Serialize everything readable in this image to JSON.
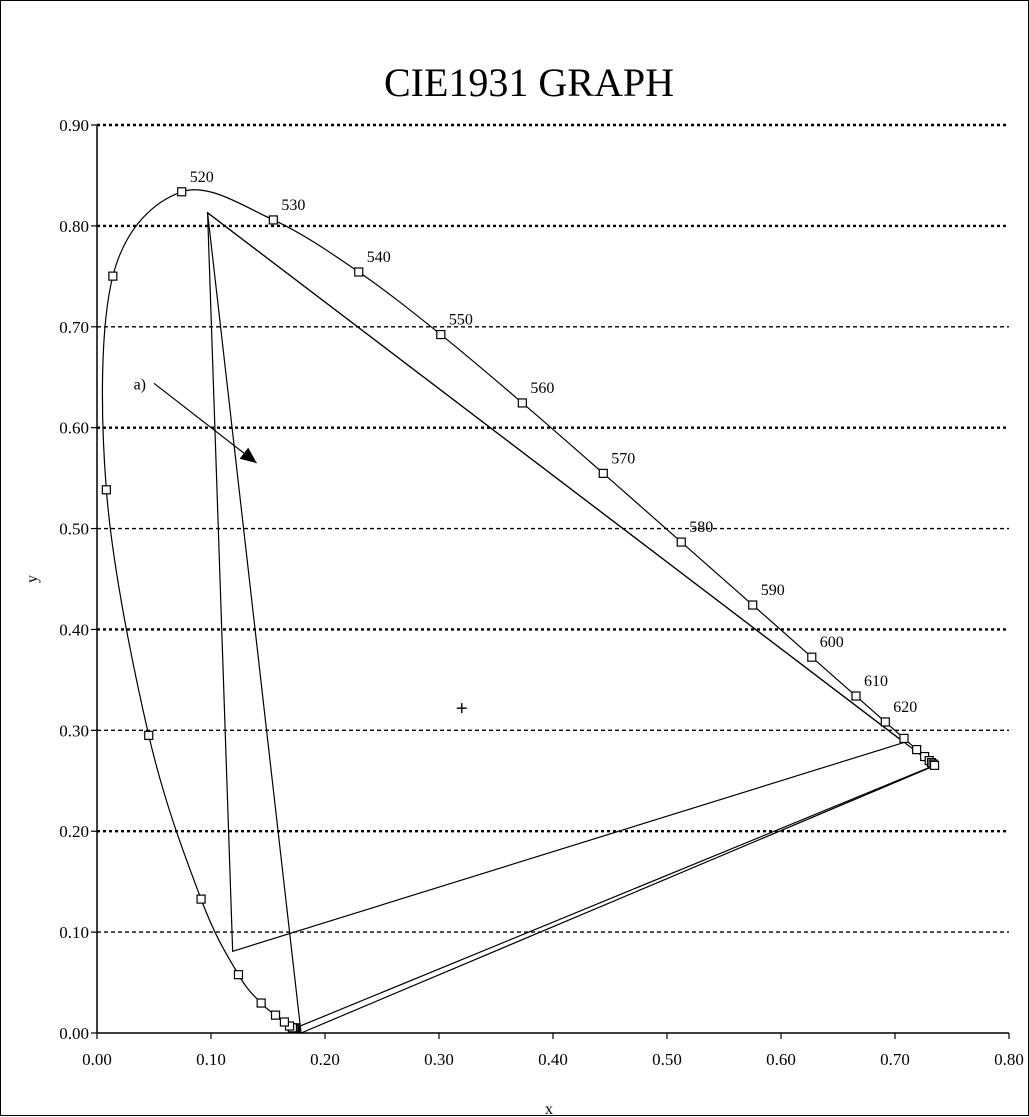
{
  "chart_data": {
    "type": "scatter",
    "title": "CIE1931 GRAPH",
    "xlabel": "x",
    "ylabel": "y",
    "xlim": [
      0.0,
      0.8
    ],
    "ylim": [
      0.0,
      0.9
    ],
    "x_ticks": [
      "0.00",
      "0.10",
      "0.20",
      "0.30",
      "0.40",
      "0.50",
      "0.60",
      "0.70",
      "0.80"
    ],
    "y_ticks": [
      "0.00",
      "0.10",
      "0.20",
      "0.30",
      "0.40",
      "0.50",
      "0.60",
      "0.70",
      "0.80",
      "0.90"
    ],
    "grid": "horizontal-dotted",
    "spectral_locus": [
      {
        "x": 0.1741,
        "y": 0.005
      },
      {
        "x": 0.1738,
        "y": 0.0049
      },
      {
        "x": 0.1736,
        "y": 0.005
      },
      {
        "x": 0.1733,
        "y": 0.0048
      },
      {
        "x": 0.1726,
        "y": 0.0048
      },
      {
        "x": 0.1714,
        "y": 0.0051
      },
      {
        "x": 0.1689,
        "y": 0.0069
      },
      {
        "x": 0.1644,
        "y": 0.0109
      },
      {
        "x": 0.1566,
        "y": 0.0177
      },
      {
        "x": 0.144,
        "y": 0.0297
      },
      {
        "x": 0.1241,
        "y": 0.0578
      },
      {
        "x": 0.0913,
        "y": 0.1327
      },
      {
        "x": 0.0454,
        "y": 0.295
      },
      {
        "x": 0.0082,
        "y": 0.5384
      },
      {
        "x": 0.0139,
        "y": 0.7502
      },
      {
        "x": 0.0743,
        "y": 0.8338
      },
      {
        "x": 0.1547,
        "y": 0.8059
      },
      {
        "x": 0.2296,
        "y": 0.7543
      },
      {
        "x": 0.3016,
        "y": 0.6923
      },
      {
        "x": 0.3731,
        "y": 0.6245
      },
      {
        "x": 0.4441,
        "y": 0.5547
      },
      {
        "x": 0.5125,
        "y": 0.4866
      },
      {
        "x": 0.5752,
        "y": 0.4242
      },
      {
        "x": 0.627,
        "y": 0.3725
      },
      {
        "x": 0.6658,
        "y": 0.334
      },
      {
        "x": 0.6915,
        "y": 0.3083
      },
      {
        "x": 0.7079,
        "y": 0.292
      },
      {
        "x": 0.719,
        "y": 0.2809
      },
      {
        "x": 0.726,
        "y": 0.274
      },
      {
        "x": 0.73,
        "y": 0.27
      },
      {
        "x": 0.732,
        "y": 0.268
      },
      {
        "x": 0.7334,
        "y": 0.2666
      },
      {
        "x": 0.7347,
        "y": 0.2653
      }
    ],
    "wavelength_labels": [
      {
        "label": "520",
        "x": 0.0743,
        "y": 0.8338
      },
      {
        "label": "530",
        "x": 0.1547,
        "y": 0.8059
      },
      {
        "label": "540",
        "x": 0.2296,
        "y": 0.7543
      },
      {
        "label": "550",
        "x": 0.3016,
        "y": 0.6923
      },
      {
        "label": "560",
        "x": 0.3731,
        "y": 0.6245
      },
      {
        "label": "570",
        "x": 0.4441,
        "y": 0.5547
      },
      {
        "label": "580",
        "x": 0.5125,
        "y": 0.4866
      },
      {
        "label": "590",
        "x": 0.5752,
        "y": 0.4242
      },
      {
        "label": "600",
        "x": 0.627,
        "y": 0.3725
      },
      {
        "label": "610",
        "x": 0.6658,
        "y": 0.334
      },
      {
        "label": "620",
        "x": 0.6915,
        "y": 0.3083
      }
    ],
    "triangle_inner": [
      {
        "x": 0.097,
        "y": 0.813
      },
      {
        "x": 0.119,
        "y": 0.081
      },
      {
        "x": 0.708,
        "y": 0.288
      }
    ],
    "triangle_outer": [
      {
        "x": 0.097,
        "y": 0.813
      },
      {
        "x": 0.735,
        "y": 0.265
      },
      {
        "x": 0.179,
        "y": 0.0
      }
    ],
    "white_point": {
      "x": 0.32,
      "y": 0.322
    },
    "annotation": {
      "label": "a)",
      "x": 0.05,
      "y": 0.64,
      "arrow_to_x": 0.14,
      "arrow_to_y": 0.565
    }
  }
}
